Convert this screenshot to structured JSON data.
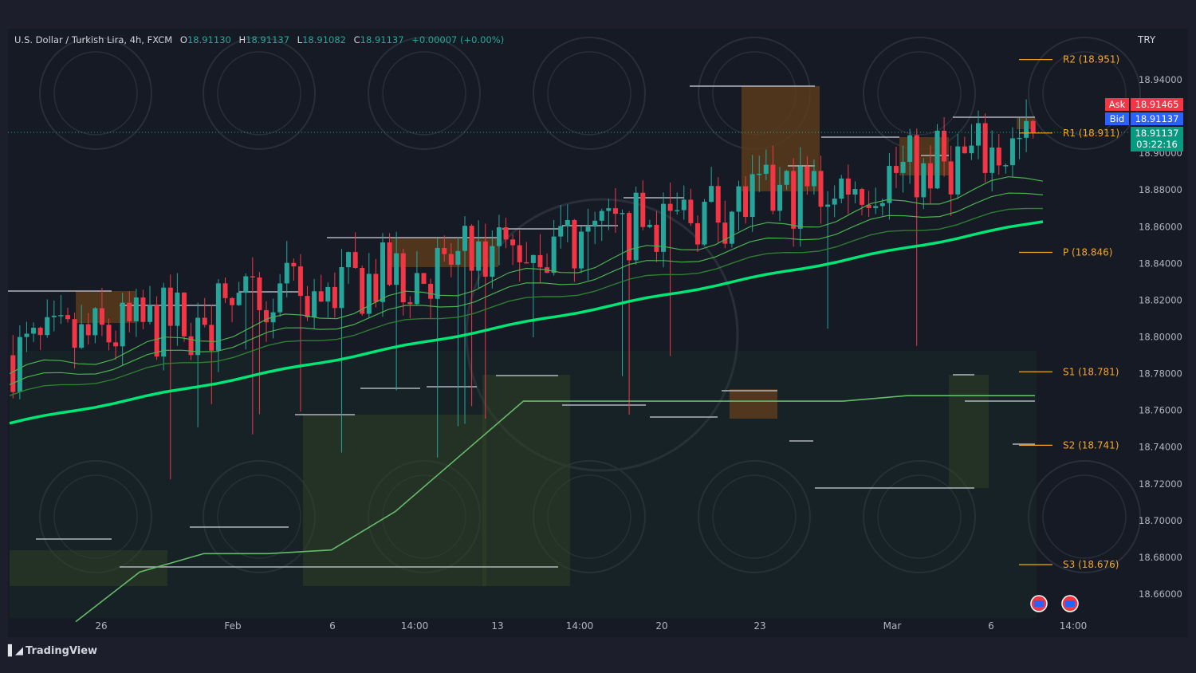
{
  "header": {
    "symbol": "U.S. Dollar / Turkish Lira, 4h, FXCM",
    "open_label": "O",
    "open": "18.91130",
    "high_label": "H",
    "high": "18.91137",
    "low_label": "L",
    "low": "18.91082",
    "close_label": "C",
    "close": "18.91137",
    "change": "+0.00007 (+0.00%)"
  },
  "currency": "TRY",
  "branding": "TradingView",
  "quote": {
    "ask_label": "Ask",
    "ask": "18.91465",
    "bid_label": "Bid",
    "bid": "18.91137",
    "last": "18.91137",
    "countdown": "03:22:16"
  },
  "colors": {
    "up": "#26a69a",
    "down": "#f23645",
    "ema_fast": "#4caf50",
    "ema_slow": "#00e676",
    "pivot": "#f5a623",
    "watermark": "#2a2e39"
  },
  "chart_data": {
    "type": "candlestick",
    "symbol": "USDTRY",
    "interval": "4h",
    "ylim": [
      18.645,
      18.97
    ],
    "y_ticks": [
      "18.94000",
      "18.92000",
      "18.90000",
      "18.88000",
      "18.86000",
      "18.84000",
      "18.82000",
      "18.80000",
      "18.78000",
      "18.76000",
      "18.74000",
      "18.72000",
      "18.70000",
      "18.68000",
      "18.66000"
    ],
    "x_ticks": [
      "26",
      "Feb",
      "6",
      "14:00",
      "13",
      "14:00",
      "20",
      "23",
      "Mar",
      "6",
      "14:00"
    ],
    "pivots": [
      {
        "label": "R2 (18.951)",
        "value": 18.951
      },
      {
        "label": "R1 (18.911)",
        "value": 18.911
      },
      {
        "label": "P (18.846)",
        "value": 18.846
      },
      {
        "label": "S1 (18.781)",
        "value": 18.781
      },
      {
        "label": "S2 (18.741)",
        "value": 18.741
      },
      {
        "label": "S3 (18.676)",
        "value": 18.676
      }
    ],
    "last_price": 18.91137,
    "trend": {
      "start": 18.79,
      "end": 18.905
    },
    "ema_slow": {
      "start": 18.753,
      "end": 18.863
    },
    "support_line": [
      18.645,
      18.672,
      18.682,
      18.682,
      18.684,
      18.705,
      18.735,
      18.765,
      18.765,
      18.765,
      18.765,
      18.765,
      18.765,
      18.768,
      18.768,
      18.768
    ]
  }
}
